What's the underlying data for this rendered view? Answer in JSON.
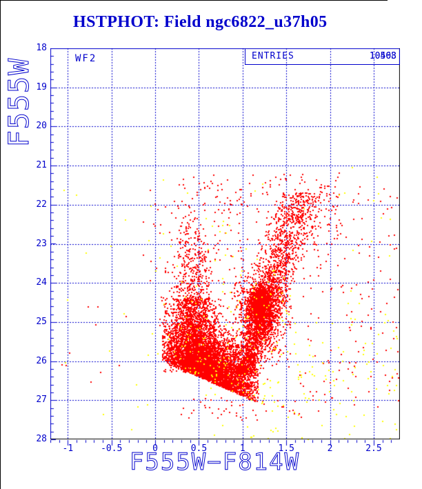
{
  "window": {
    "background": "#ffffff",
    "edge_border_color": "#000000"
  },
  "title": {
    "text": "HSTPHOT: Field ngc6822_u37h05",
    "color": "#0000cc"
  },
  "overlay": {
    "chip_label": "WF2",
    "entries_label": "ENTRIES",
    "entries_values": [
      "10508",
      "10463"
    ],
    "entries_note": "two counts overprinted in same box"
  },
  "axes": {
    "x_label": "F555W−F814W",
    "y_label": "F555W",
    "axis_color": "#0000cc",
    "frame_left_top_color": "#0000cc",
    "frame_right_bottom_color": "#000000",
    "x_tick_labels": [
      "-1",
      "-0.5",
      "0",
      "0.5",
      "1",
      "1.5",
      "2",
      "2.5"
    ],
    "x_tick_values": [
      -1,
      -0.5,
      0,
      0.5,
      1,
      1.5,
      2,
      2.5
    ],
    "y_tick_labels": [
      "18",
      "19",
      "20",
      "21",
      "22",
      "23",
      "24",
      "25",
      "26",
      "27",
      "28"
    ],
    "y_tick_values": [
      18,
      19,
      20,
      21,
      22,
      23,
      24,
      25,
      26,
      27,
      28
    ],
    "x_minor_step": 0.1,
    "y_minor_step": 0.2
  },
  "chart_data": {
    "type": "scatter",
    "title": "HSTPHOT: Field ngc6822_u37h05",
    "xlabel": "F555W−F814W",
    "ylabel": "F555W",
    "xlim": [
      -1.2,
      2.8
    ],
    "ylim": [
      28,
      18
    ],
    "grid": "blue dashed lines at every major tick",
    "legend": "none",
    "marker_px": 2,
    "features": {
      "description": "Color-magnitude diagram of NGC 6822 (chip WF2): blue main-sequence plume near color 0.4, dense faint wedge with diagonal completeness cutoff mag = 25.9 + 1.0*color, solid red-clump blob at (1.2, 24.55), red giant branch rising from (1.0, 26.3) to tip (1.65, 21.8), sparse yellow flagged stars mostly faint and red",
      "red_clump": {
        "x": 1.2,
        "mag": 24.55
      },
      "rgb_tip": {
        "x": 1.65,
        "mag": 21.8
      },
      "faint_cutoff": "mag = 25.9 + 1.0 * color",
      "total_points_approx": 10500
    },
    "series": [
      {
        "name": "detected-stars",
        "color": "#ff0000",
        "clusters": [
          {
            "type": "wedge",
            "n": 4600,
            "x_mean": 0.62,
            "x_sd": 0.28,
            "x_min": 0.08,
            "x_max": 1.18,
            "edge_zero": 25.9,
            "edge_slope": 1.0,
            "depth_sd": 0.6
          },
          {
            "type": "band",
            "n": 1500,
            "x_mean": 0.45,
            "x_sd": 0.13,
            "y_min": 24.4,
            "y_max": 26.3
          },
          {
            "type": "plume",
            "n": 400,
            "x_mean": 0.42,
            "x_sd": 0.12,
            "y_base": 24.6,
            "y_sd": 1.2,
            "y_min": 21.3
          },
          {
            "type": "gaussian",
            "n": 1400,
            "cx": 1.2,
            "cy": 24.55,
            "sx": 0.055,
            "sy": 0.18
          },
          {
            "type": "gaussian",
            "n": 1150,
            "cx": 1.2,
            "cy": 24.8,
            "sx": 0.14,
            "sy": 0.55
          },
          {
            "type": "ridge",
            "n": 1900,
            "x0": 1.02,
            "y0": 26.35,
            "x1": 1.68,
            "y1": 21.7,
            "spread0": 0.055,
            "spread1": 0.15,
            "t_pow": 1.35
          },
          {
            "type": "uniform",
            "n": 150,
            "x_min": 0.5,
            "x_max": 2.15,
            "y_min": 21.2,
            "y_max": 23.4
          },
          {
            "type": "uniform",
            "n": 90,
            "x_min": -0.15,
            "x_max": 2.3,
            "y_min": 21.3,
            "y_max": 24.3
          },
          {
            "type": "uniform",
            "n": 140,
            "x_min": 1.65,
            "x_max": 2.79,
            "y_min": 21.5,
            "y_max": 27.3
          },
          {
            "type": "uniform",
            "n": 10,
            "x_min": -1.15,
            "x_max": -0.2,
            "y_min": 24.6,
            "y_max": 26.6
          },
          {
            "type": "uniform",
            "n": 45,
            "x_min": 0.3,
            "x_max": 1.7,
            "y_min": 26.9,
            "y_max": 27.5
          }
        ]
      },
      {
        "name": "flagged-stars",
        "color": "#ffff00",
        "clusters": [
          {
            "type": "uniform",
            "n": 70,
            "x_min": -1.1,
            "x_max": 2.78,
            "y_min": 21.0,
            "y_max": 28.0
          },
          {
            "type": "uniform",
            "n": 110,
            "x_min": 1.05,
            "x_max": 2.78,
            "y_min": 24.8,
            "y_max": 28.0
          },
          {
            "type": "wedge",
            "n": 80,
            "x_mean": 0.7,
            "x_sd": 0.3,
            "x_min": 0.15,
            "x_max": 1.3,
            "edge_zero": 25.9,
            "edge_slope": 1.0,
            "depth_sd": 0.8
          },
          {
            "type": "gaussian",
            "n": 35,
            "cx": 1.2,
            "cy": 24.6,
            "sx": 0.18,
            "sy": 0.5
          },
          {
            "type": "uniform",
            "n": 25,
            "x_min": 0.0,
            "x_max": 1.0,
            "y_min": 22.5,
            "y_max": 25.5
          }
        ]
      }
    ]
  }
}
